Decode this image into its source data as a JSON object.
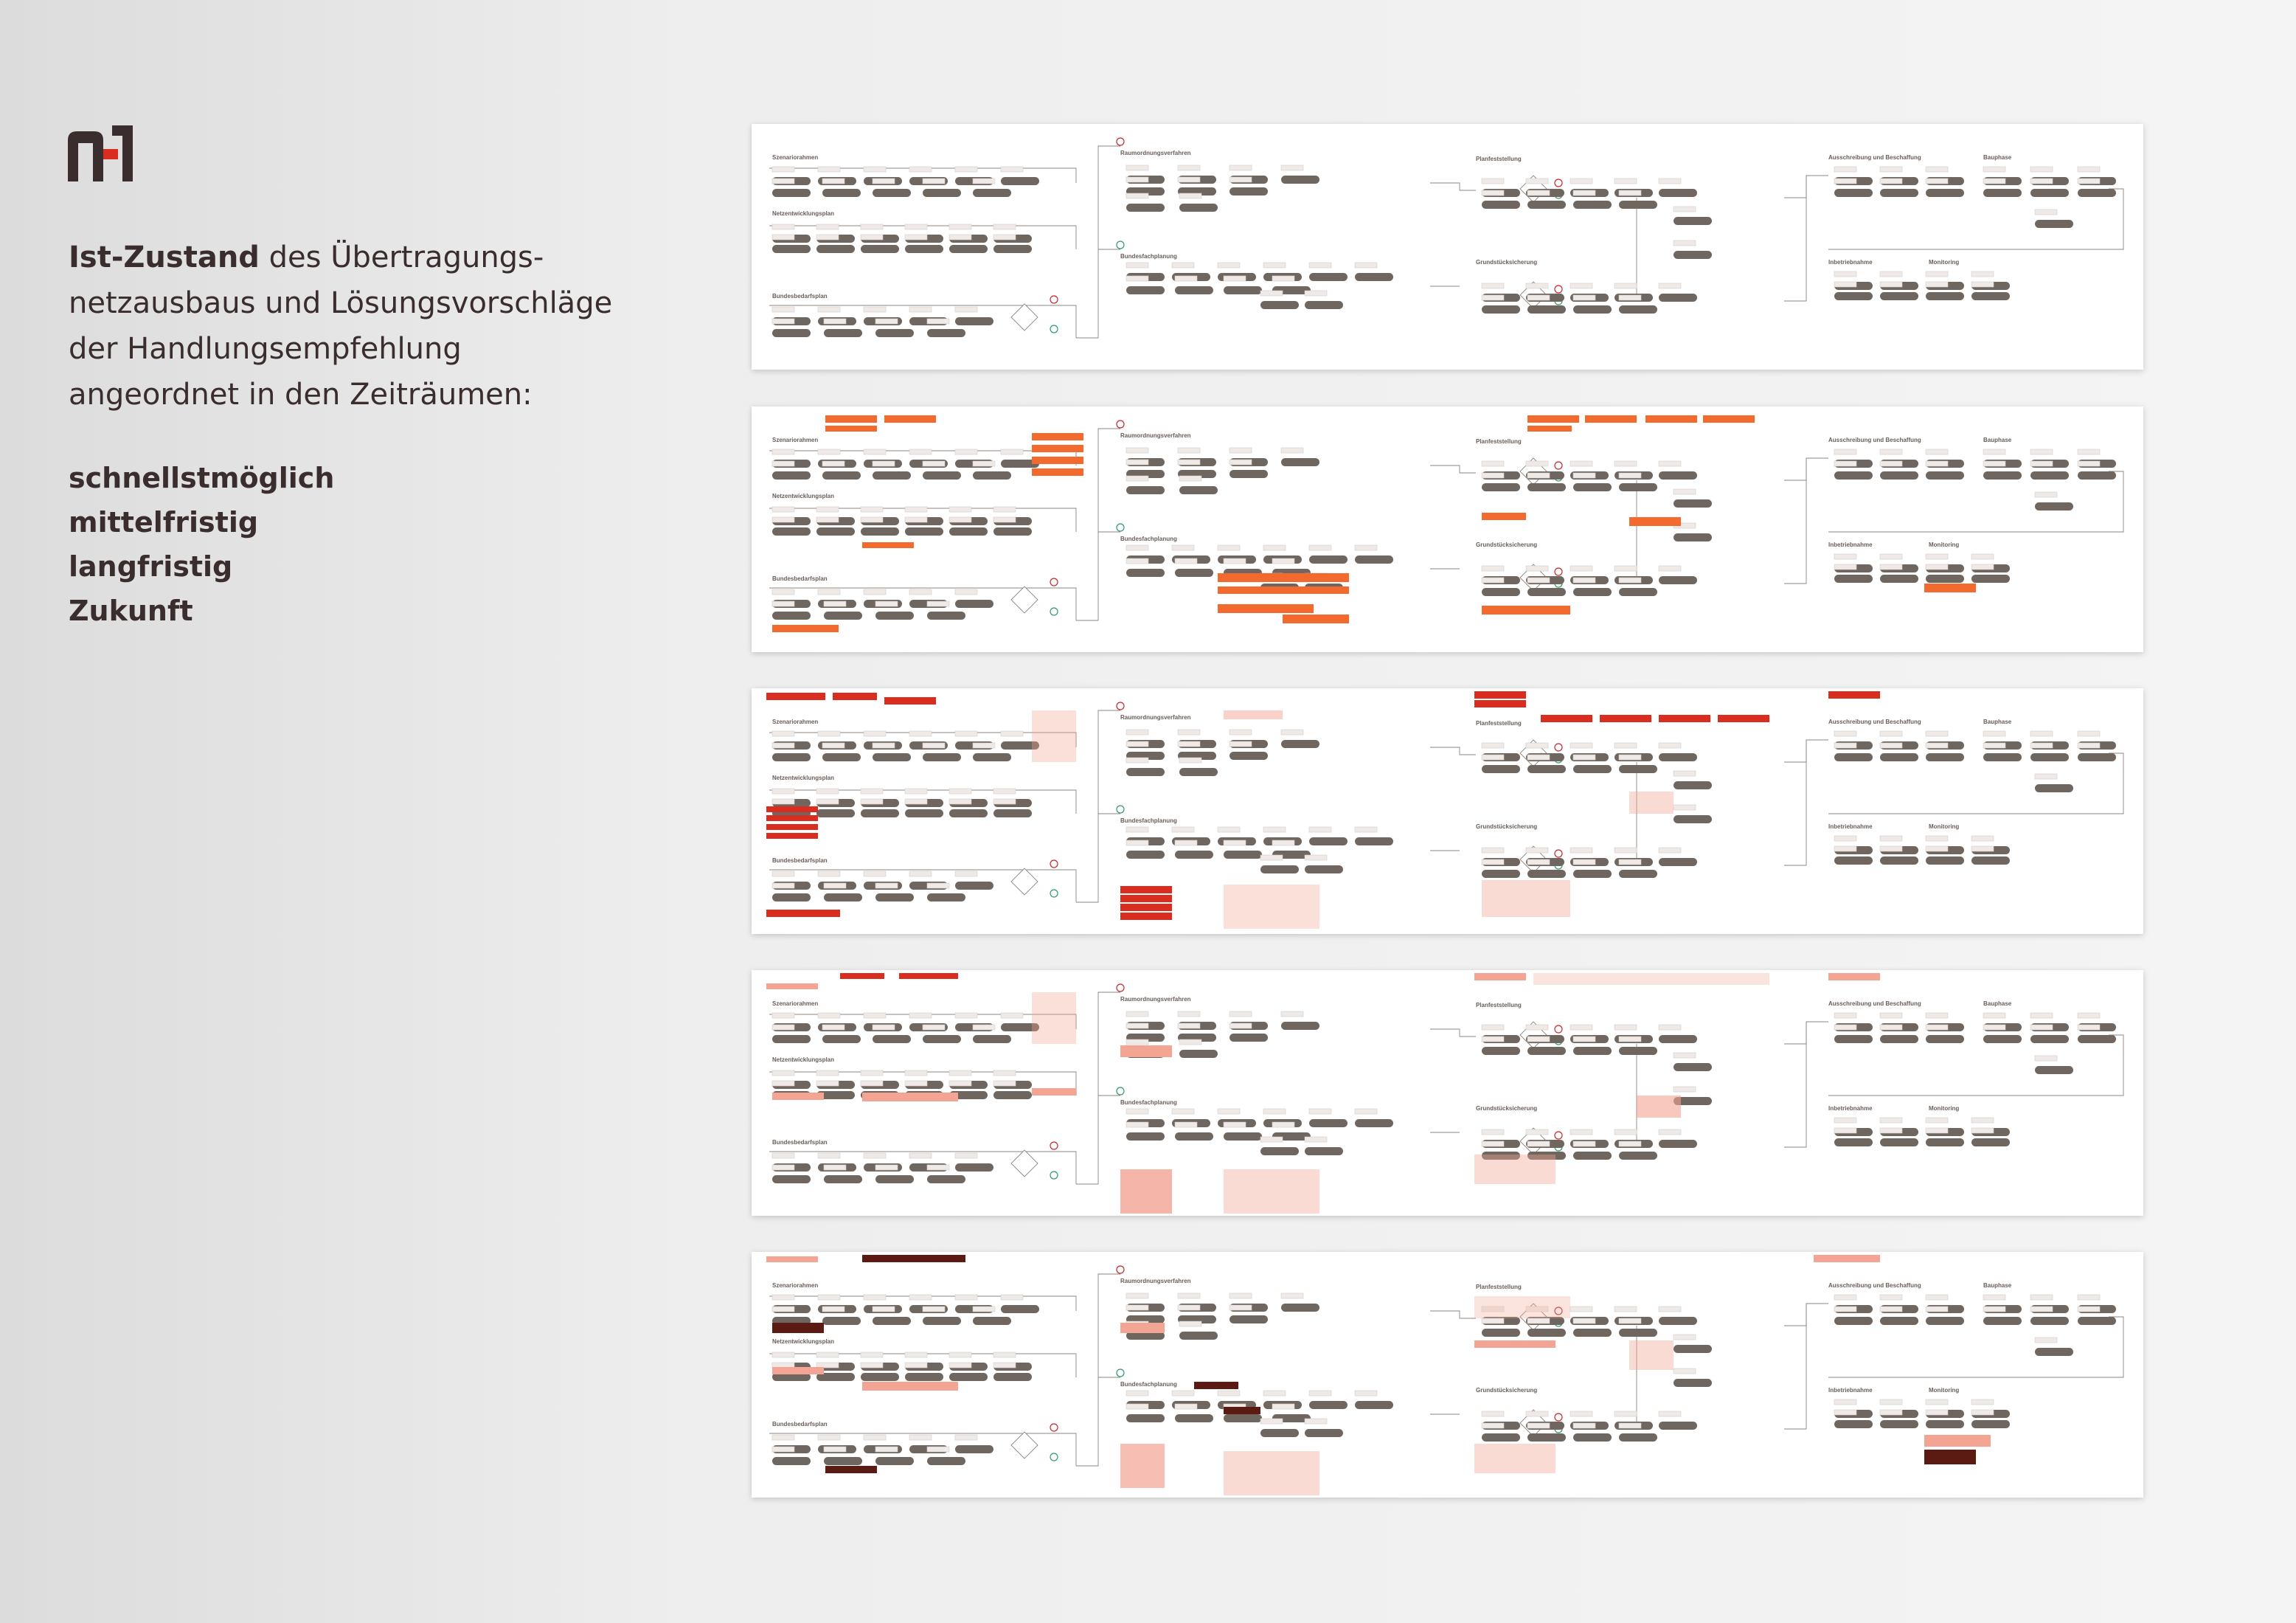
{
  "intro": {
    "bold": "Ist-Zustand",
    "rest": " des Übertragungs-netzausbaus und Lösungsvorschläge der Handlungsempfehlung angeordnet in den Zeiträumen:"
  },
  "periods": [
    "schnellstmöglich",
    "mittelfristig",
    "langfristig",
    "Zukunft"
  ],
  "sections": [
    "Szenariorahmen",
    "Netzentwicklungsplan",
    "Bundesbedarfsplan",
    "Raumordnungsverfahren",
    "Bundesfachplanung",
    "Planfeststellung",
    "Grundstücksicherung",
    "Ausschreibung und Beschaffung",
    "Bauphase",
    "Inbetriebnahme",
    "Monitoring"
  ],
  "colors": {
    "accent_orange": "#f26a2e",
    "accent_red": "#d92e1f",
    "accent_salmon": "#f3a493",
    "accent_darkred": "#5b1a12",
    "node": "#6f6660"
  }
}
